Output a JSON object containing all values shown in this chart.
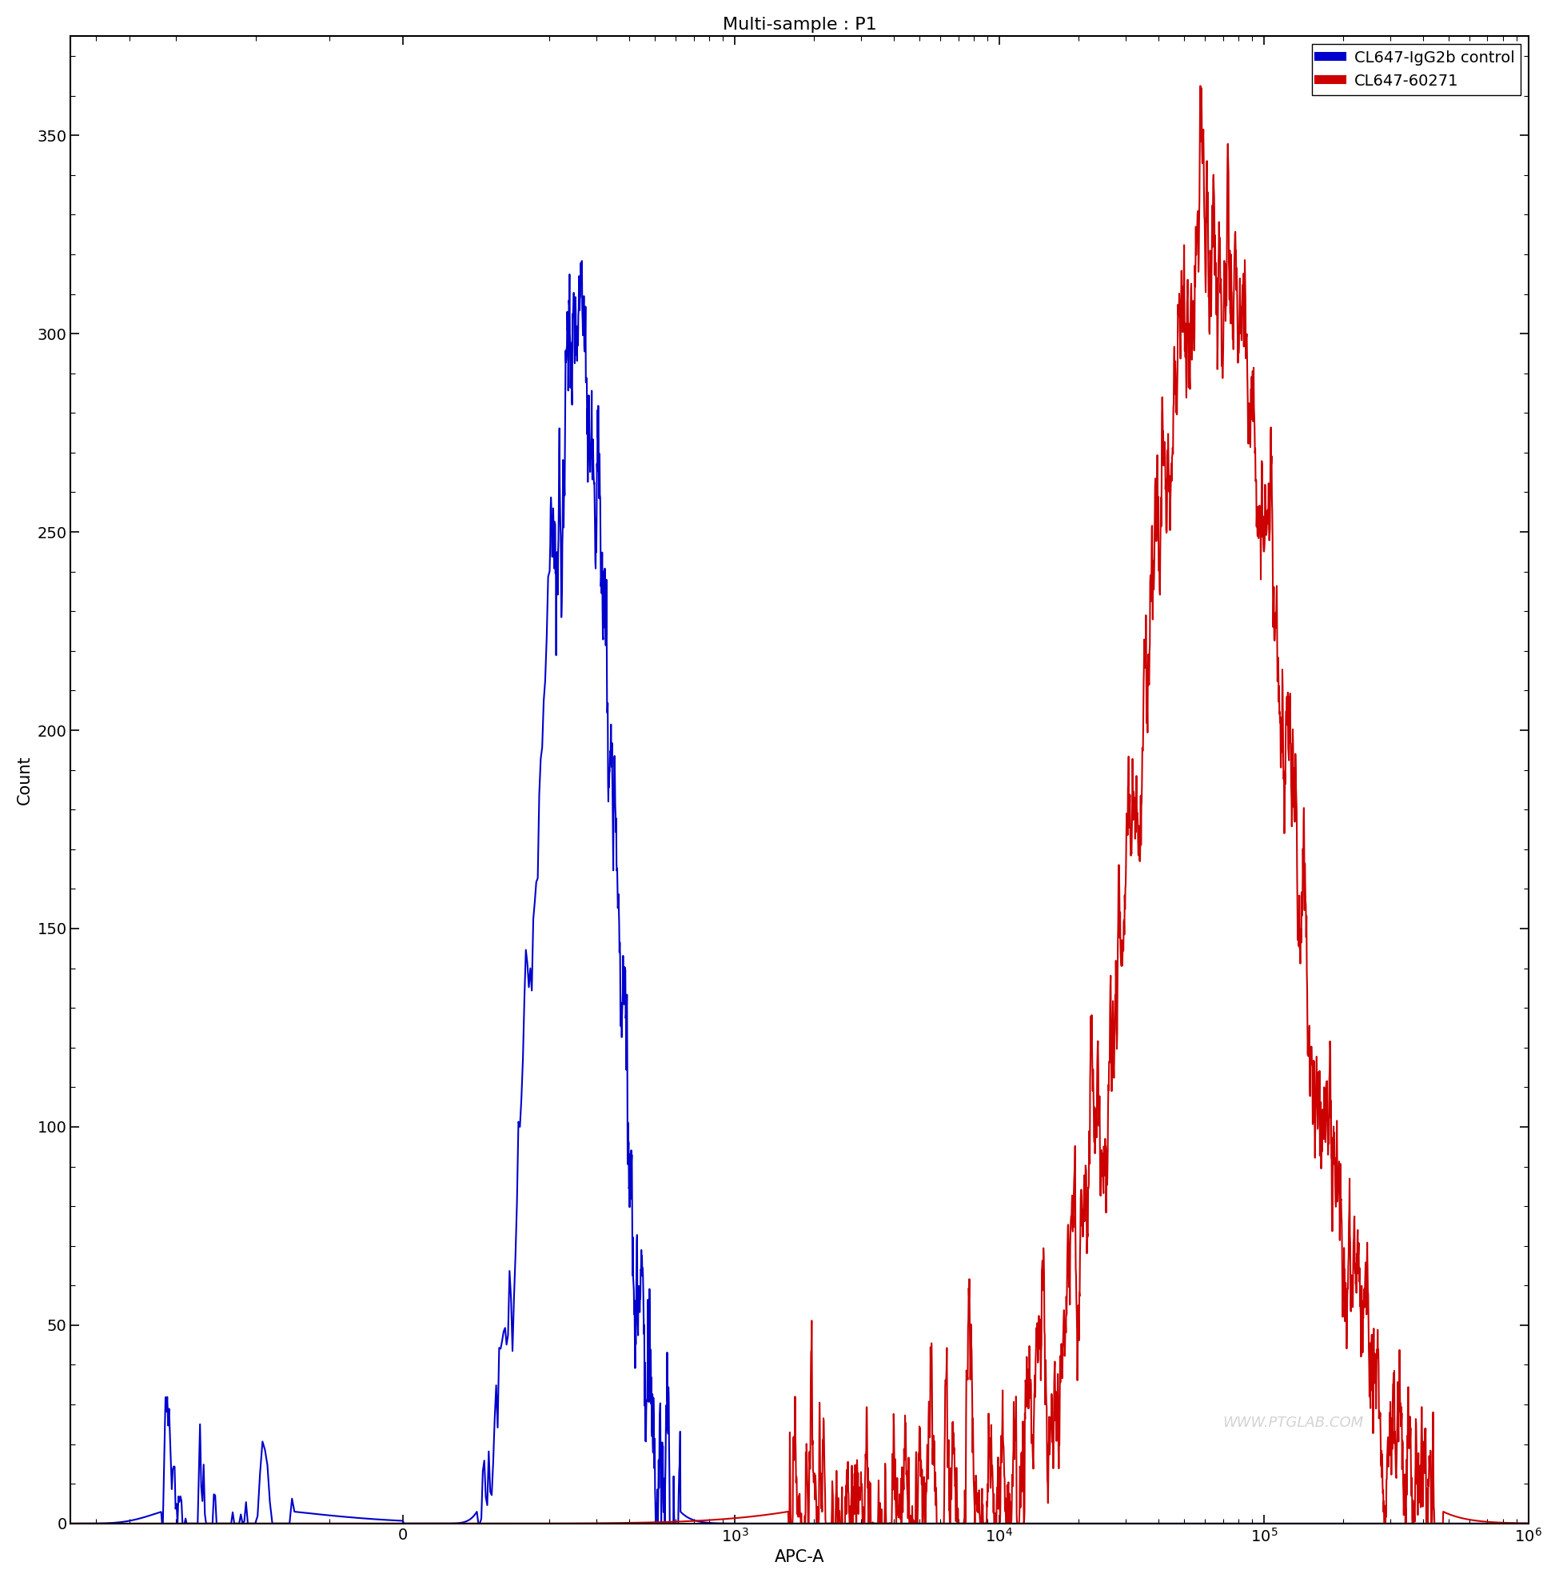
{
  "title": "Multi-sample : P1",
  "xlabel": "APC-A",
  "ylabel": "Count",
  "ylim_min": 0,
  "ylim_max": 375,
  "yticks": [
    0,
    50,
    100,
    150,
    200,
    250,
    300,
    350
  ],
  "blue_label": "CL647-IgG2b control",
  "red_label": "CL647-60271",
  "blue_color": "#0000cc",
  "red_color": "#cc0000",
  "line_width": 1.5,
  "background_color": "#ffffff",
  "watermark": "WWW.PTGLAB.COM",
  "title_fontsize": 16,
  "axis_fontsize": 15,
  "tick_fontsize": 14,
  "legend_fontsize": 14,
  "symlog_linthresh": 200,
  "symlog_linscale": 0.5
}
